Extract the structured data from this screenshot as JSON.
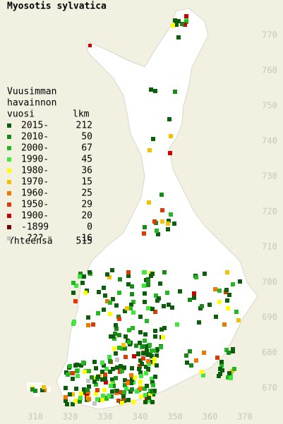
{
  "title": "Myosotis sylvatica",
  "legend": {
    "header": [
      "Vuusimman",
      "havainnon",
      "vuosi"
    ],
    "count_header": "lkm",
    "rows": [
      {
        "label": "2015-",
        "count": 212,
        "color": "#0b5e0b"
      },
      {
        "label": "2010-",
        "count": 50,
        "color": "#178a17"
      },
      {
        "label": "2000-",
        "count": 67,
        "color": "#22b822"
      },
      {
        "label": "1990-",
        "count": 45,
        "color": "#3ee63e"
      },
      {
        "label": "1980-",
        "count": 36,
        "color": "#ffff00"
      },
      {
        "label": "1970-",
        "count": 15,
        "color": "#f2c200"
      },
      {
        "label": "1960-",
        "count": 25,
        "color": "#f07800"
      },
      {
        "label": "1950-",
        "count": 29,
        "color": "#e03a00"
      },
      {
        "label": "1900-",
        "count": 20,
        "color": "#cc0000"
      },
      {
        "label": "-1899",
        "count": 0,
        "color": "#7a0000"
      },
      {
        "label": "???",
        "count": 16,
        "color": "#c4c4c4"
      }
    ],
    "total_label": "Yhteensä",
    "total": 515
  },
  "x_labels": [
    310,
    320,
    330,
    340,
    350,
    360,
    370
  ],
  "y_labels": [
    670,
    680,
    690,
    700,
    710,
    720,
    730,
    740,
    750,
    760,
    770
  ]
}
